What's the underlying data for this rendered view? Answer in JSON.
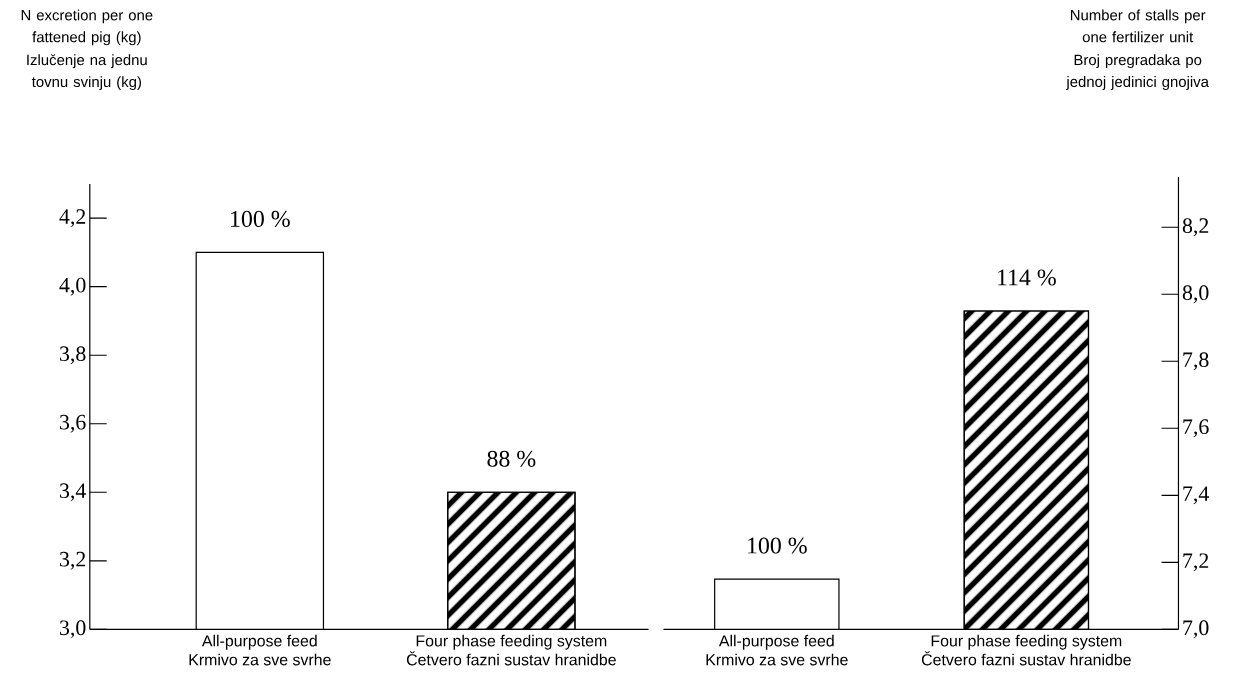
{
  "chart_data": [
    {
      "type": "bar",
      "annotations": [
        "N excretion per one fattened pig (kg)",
        "Izlučenje na jednu tovnu svinju (kg)",
        {
          "text": "100 %",
          "x": "All-purpose feed Krmivo za sve svrhe",
          "y": 4.1
        },
        {
          "text": "88 %",
          "x": "Four phase feeding system Četvero fazni sustav hranidbe",
          "y": 3.4
        }
      ],
      "categories": [
        "All-purpose feed Krmivo za sve svrhe",
        "Four phase feeding system Četvero fazni sustav hranidbe"
      ],
      "values": [
        4.1,
        3.4
      ],
      "colors": [
        "#ffffff",
        "#000000"
      ],
      "ylim": [
        3.0,
        4.3
      ],
      "yticks": [
        {
          "value": 3.0,
          "label": "3,0"
        },
        {
          "value": 3.2,
          "label": "3,2"
        },
        {
          "value": 3.4,
          "label": "3,4"
        },
        {
          "value": 3.6,
          "label": "3,6"
        },
        {
          "value": 3.8,
          "label": "3,8"
        },
        {
          "value": 4.0,
          "label": "4,0"
        },
        {
          "value": 4.2,
          "label": "4,2"
        }
      ]
    },
    {
      "type": "bar",
      "annotations": [
        "Number of stalls per one fertilizer unit",
        "Broj pregradaka po jednoj jedinici gnojiva",
        {
          "text": "100 %",
          "x": "All-purpose feed Krmivo za sve svrhe",
          "y": 7.15
        },
        {
          "text": "114 %",
          "x": "Four phase feeding system Četvero fazni sustav hranidbe",
          "y": 7.95
        }
      ],
      "categories": [
        "All-purpose feed Krmivo za sve svrhe",
        "Four phase feeding system Četvero fazni sustav hranidbe"
      ],
      "values": [
        7.15,
        7.95
      ],
      "colors": [
        "#ffffff",
        "#000000"
      ],
      "ylim": [
        7.0,
        8.35
      ],
      "yticks": [
        {
          "value": 7.0,
          "label": "7,0"
        },
        {
          "value": 7.2,
          "label": "7,2"
        },
        {
          "value": 7.4,
          "label": "7,4"
        },
        {
          "value": 7.6,
          "label": "7,6"
        },
        {
          "value": 7.8,
          "label": "7,8"
        },
        {
          "value": 8.0,
          "label": "8,0"
        },
        {
          "value": 8.2,
          "label": "8,2"
        }
      ]
    }
  ]
}
